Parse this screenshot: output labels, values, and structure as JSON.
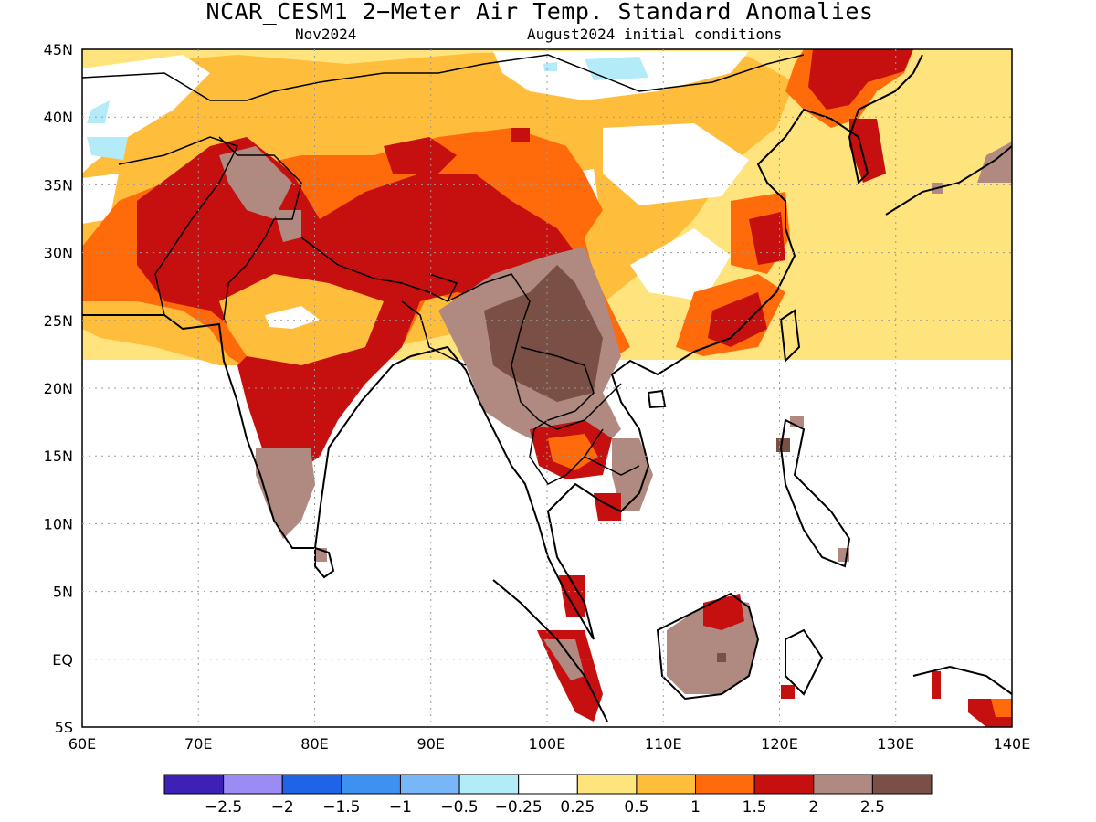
{
  "title": "NCAR_CESM1 2−Meter Air Temp. Standard Anomalies",
  "valid_month": "Nov2024",
  "init_label": "August2024 initial conditions",
  "map": {
    "lon_labels": [
      "60E",
      "70E",
      "80E",
      "90E",
      "100E",
      "110E",
      "120E",
      "130E",
      "140E"
    ],
    "lat_labels": [
      "45N",
      "40N",
      "35N",
      "30N",
      "25N",
      "20N",
      "15N",
      "10N",
      "5N",
      "EQ",
      "5S"
    ],
    "region": "South and East Asia, 60E–140E, 5S–45N",
    "grid": "dotted"
  },
  "legend": {
    "colors": [
      "#3d21b5",
      "#9b8cf5",
      "#1f63e6",
      "#3d92f0",
      "#79b6f8",
      "#b3ebf8",
      "#ffffff",
      "#ffe37c",
      "#ffbd3c",
      "#ff6a0b",
      "#c60f0f",
      "#b08a80",
      "#7a4f45"
    ],
    "labels": [
      "−2.5",
      "−2",
      "−1.5",
      "−1",
      "−0.5",
      "−0.25",
      "0.25",
      "0.5",
      "1",
      "1.5",
      "2",
      "2.5"
    ]
  }
}
